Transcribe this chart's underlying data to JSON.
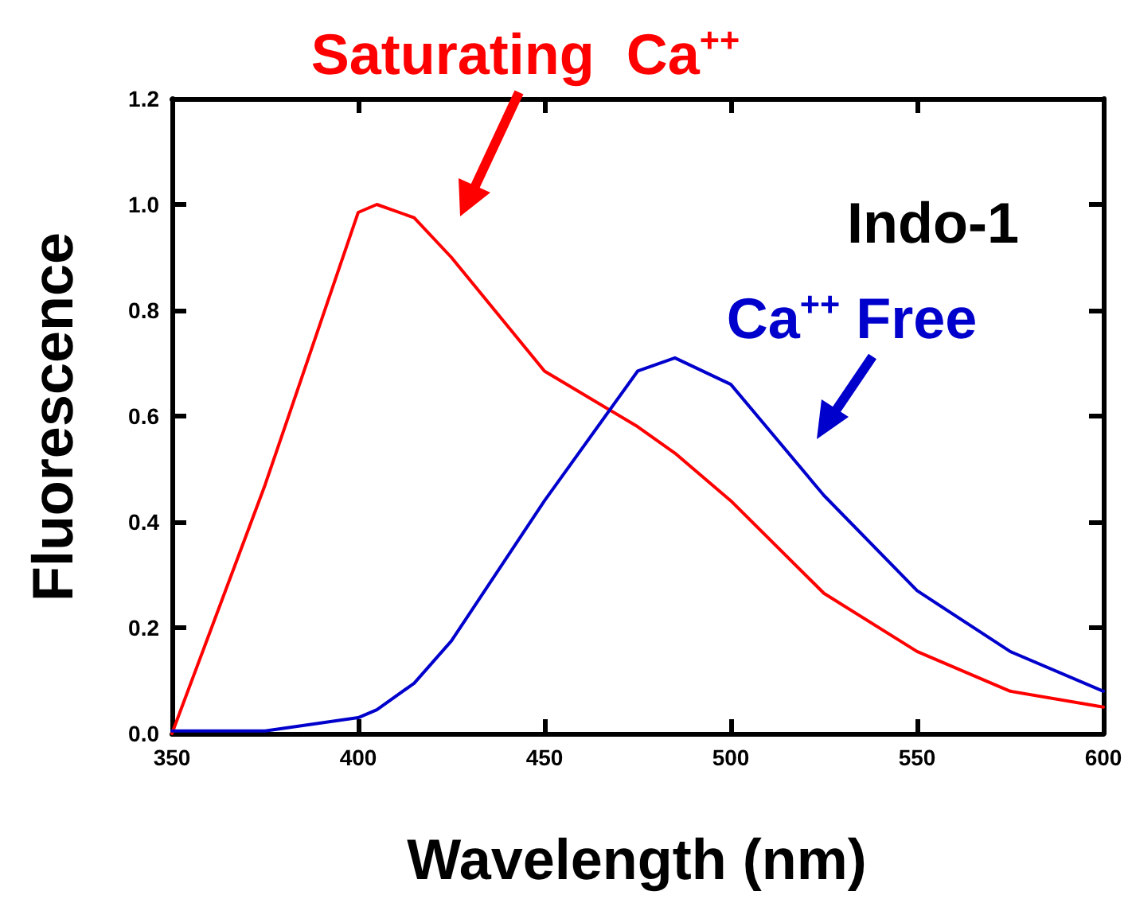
{
  "chart_data": {
    "type": "line",
    "xlabel": "Wavelength (nm)",
    "ylabel": "Fluorescence",
    "annotations": [
      "Indo-1"
    ],
    "xlim": [
      350,
      600
    ],
    "xticks": [
      350,
      400,
      450,
      500,
      550,
      600
    ],
    "ylim": [
      0,
      1.2
    ],
    "yticks": [
      {
        "value": 0,
        "label": "0.0"
      },
      {
        "value": 0.2,
        "label": "0.2"
      },
      {
        "value": 0.4,
        "label": "0.4"
      },
      {
        "value": 0.6,
        "label": "0.6"
      },
      {
        "value": 0.8,
        "label": "0.8"
      },
      {
        "value": 1,
        "label": "1.0"
      },
      {
        "value": 1.2,
        "label": "1.2"
      }
    ],
    "grid": false,
    "legend": false,
    "marker": "none",
    "line_style": "solid",
    "series": [
      {
        "name": "Saturating  Ca$^{++}$",
        "color": "#ff0000",
        "x": [
          350,
          375,
          400,
          405,
          415,
          425,
          450,
          475,
          485,
          500,
          525,
          550,
          575,
          600
        ],
        "values": [
          0,
          0.47,
          0.985,
          1.0,
          0.975,
          0.9,
          0.685,
          0.58,
          0.53,
          0.44,
          0.265,
          0.155,
          0.08,
          0.05
        ]
      },
      {
        "name": "Ca$^{++}$ Free",
        "color": "#0000cc",
        "x": [
          350,
          375,
          400,
          405,
          415,
          425,
          450,
          475,
          485,
          500,
          525,
          550,
          575,
          600
        ],
        "values": [
          0.005,
          0.005,
          0.03,
          0.045,
          0.095,
          0.175,
          0.44,
          0.685,
          0.71,
          0.66,
          0.45,
          0.27,
          0.155,
          0.08
        ]
      }
    ]
  }
}
